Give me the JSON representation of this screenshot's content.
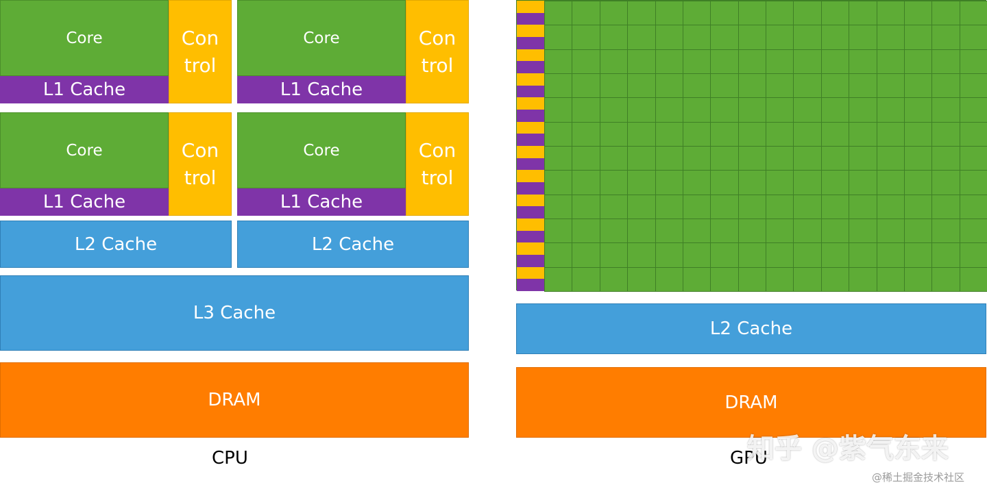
{
  "cpu": {
    "core_label": "Core",
    "l1_label": "L1 Cache",
    "control_label": "Con trol",
    "l2_label": "L2 Cache",
    "l3_label": "L3 Cache",
    "dram_label": "DRAM",
    "caption": "CPU"
  },
  "gpu": {
    "l2_label": "L2 Cache",
    "dram_label": "DRAM",
    "caption": "GPU"
  },
  "watermark": {
    "main": "知乎 @紫气东来",
    "credit": "@稀土掘金技术社区"
  },
  "colors": {
    "core": "#5eac36",
    "l1": "#7f34a8",
    "control": "#ffbe00",
    "cache": "#449fda",
    "dram": "#ff7d00"
  }
}
